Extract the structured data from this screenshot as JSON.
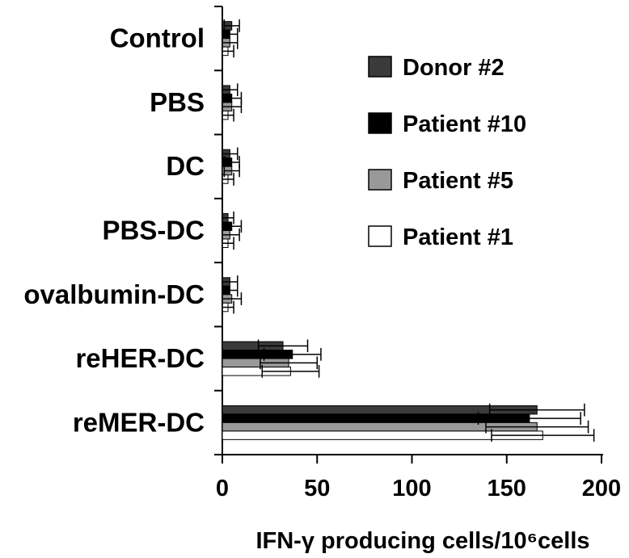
{
  "chart_data": {
    "type": "bar",
    "orientation": "horizontal",
    "title": "",
    "xlabel": "IFN-γ producing cells/10⁶cells",
    "ylabel": "",
    "xlim": [
      0,
      200
    ],
    "xticks": [
      0,
      50,
      100,
      150,
      200
    ],
    "grid": false,
    "legend_position": "top-right",
    "categories": [
      "Control",
      "PBS",
      "DC",
      "PBS-DC",
      "ovalbumin-DC",
      "reHER-DC",
      "reMER-DC"
    ],
    "series": [
      {
        "name": "Donor #2",
        "color": "#3a3a3a",
        "values": [
          5,
          4,
          4,
          3,
          4,
          32,
          166
        ],
        "errors": [
          4,
          4,
          4,
          3,
          4,
          13,
          25
        ]
      },
      {
        "name": "Patient #10",
        "color": "#000000",
        "values": [
          4,
          5,
          5,
          5,
          4,
          37,
          162
        ],
        "errors": [
          4,
          5,
          4,
          5,
          4,
          15,
          27
        ]
      },
      {
        "name": "Patient #5",
        "color": "#999999",
        "values": [
          4,
          5,
          5,
          4,
          5,
          35,
          166
        ],
        "errors": [
          4,
          5,
          4,
          5,
          5,
          15,
          27
        ]
      },
      {
        "name": "Patient #1",
        "color": "#ffffff",
        "values": [
          3,
          3,
          3,
          3,
          3,
          36,
          169
        ],
        "errors": [
          3,
          3,
          3,
          3,
          3,
          15,
          27
        ]
      }
    ]
  }
}
